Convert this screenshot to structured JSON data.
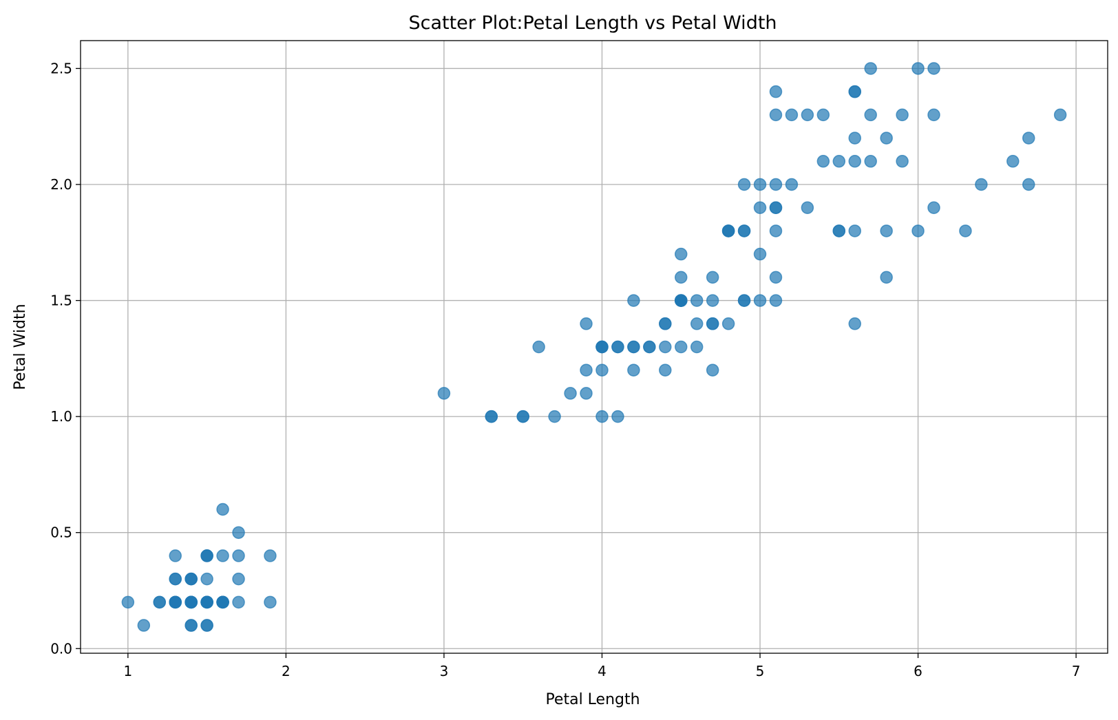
{
  "chart_data": {
    "type": "scatter",
    "title": "Scatter Plot:Petal Length vs Petal Width",
    "xlabel": "Petal Length",
    "ylabel": "Petal Width",
    "xlim": [
      0.7,
      7.2
    ],
    "ylim": [
      -0.02,
      2.62
    ],
    "xticks": [
      1,
      2,
      3,
      4,
      5,
      6,
      7
    ],
    "xtick_labels": [
      "1",
      "2",
      "3",
      "4",
      "5",
      "6",
      "7"
    ],
    "yticks": [
      0.0,
      0.5,
      1.0,
      1.5,
      2.0,
      2.5
    ],
    "ytick_labels": [
      "0.0",
      "0.5",
      "1.0",
      "1.5",
      "2.0",
      "2.5"
    ],
    "grid": true,
    "marker_color": "#1f77b4",
    "marker_alpha": 0.7,
    "points": [
      [
        1.4,
        0.2
      ],
      [
        1.4,
        0.2
      ],
      [
        1.3,
        0.2
      ],
      [
        1.5,
        0.2
      ],
      [
        1.4,
        0.2
      ],
      [
        1.7,
        0.4
      ],
      [
        1.4,
        0.3
      ],
      [
        1.5,
        0.2
      ],
      [
        1.4,
        0.2
      ],
      [
        1.5,
        0.1
      ],
      [
        1.5,
        0.2
      ],
      [
        1.6,
        0.2
      ],
      [
        1.4,
        0.1
      ],
      [
        1.1,
        0.1
      ],
      [
        1.2,
        0.2
      ],
      [
        1.5,
        0.4
      ],
      [
        1.3,
        0.4
      ],
      [
        1.4,
        0.3
      ],
      [
        1.7,
        0.3
      ],
      [
        1.5,
        0.3
      ],
      [
        1.7,
        0.2
      ],
      [
        1.5,
        0.4
      ],
      [
        1.0,
        0.2
      ],
      [
        1.7,
        0.5
      ],
      [
        1.9,
        0.2
      ],
      [
        1.6,
        0.2
      ],
      [
        1.6,
        0.4
      ],
      [
        1.5,
        0.2
      ],
      [
        1.4,
        0.2
      ],
      [
        1.6,
        0.2
      ],
      [
        1.6,
        0.2
      ],
      [
        1.5,
        0.4
      ],
      [
        1.5,
        0.1
      ],
      [
        1.4,
        0.2
      ],
      [
        1.5,
        0.2
      ],
      [
        1.2,
        0.2
      ],
      [
        1.3,
        0.2
      ],
      [
        1.4,
        0.1
      ],
      [
        1.3,
        0.2
      ],
      [
        1.5,
        0.2
      ],
      [
        1.3,
        0.3
      ],
      [
        1.3,
        0.3
      ],
      [
        1.3,
        0.2
      ],
      [
        1.6,
        0.6
      ],
      [
        1.9,
        0.4
      ],
      [
        1.4,
        0.3
      ],
      [
        1.6,
        0.2
      ],
      [
        1.4,
        0.2
      ],
      [
        1.5,
        0.2
      ],
      [
        1.4,
        0.2
      ],
      [
        4.7,
        1.4
      ],
      [
        4.5,
        1.5
      ],
      [
        4.9,
        1.5
      ],
      [
        4.0,
        1.3
      ],
      [
        4.6,
        1.5
      ],
      [
        4.5,
        1.3
      ],
      [
        4.7,
        1.6
      ],
      [
        3.3,
        1.0
      ],
      [
        4.6,
        1.3
      ],
      [
        3.9,
        1.4
      ],
      [
        3.5,
        1.0
      ],
      [
        4.2,
        1.5
      ],
      [
        4.0,
        1.0
      ],
      [
        4.7,
        1.4
      ],
      [
        3.6,
        1.3
      ],
      [
        4.4,
        1.4
      ],
      [
        4.5,
        1.5
      ],
      [
        4.1,
        1.0
      ],
      [
        4.5,
        1.5
      ],
      [
        3.9,
        1.1
      ],
      [
        4.8,
        1.8
      ],
      [
        4.0,
        1.3
      ],
      [
        4.9,
        1.5
      ],
      [
        4.7,
        1.2
      ],
      [
        4.3,
        1.3
      ],
      [
        4.4,
        1.4
      ],
      [
        4.8,
        1.4
      ],
      [
        5.0,
        1.7
      ],
      [
        4.5,
        1.5
      ],
      [
        3.5,
        1.0
      ],
      [
        3.8,
        1.1
      ],
      [
        3.7,
        1.0
      ],
      [
        3.9,
        1.2
      ],
      [
        5.1,
        1.6
      ],
      [
        4.5,
        1.5
      ],
      [
        4.5,
        1.6
      ],
      [
        4.7,
        1.5
      ],
      [
        4.4,
        1.3
      ],
      [
        4.1,
        1.3
      ],
      [
        4.0,
        1.3
      ],
      [
        4.4,
        1.2
      ],
      [
        4.6,
        1.4
      ],
      [
        4.0,
        1.2
      ],
      [
        3.3,
        1.0
      ],
      [
        4.2,
        1.3
      ],
      [
        4.2,
        1.2
      ],
      [
        4.2,
        1.3
      ],
      [
        4.3,
        1.3
      ],
      [
        3.0,
        1.1
      ],
      [
        4.1,
        1.3
      ],
      [
        6.0,
        2.5
      ],
      [
        5.1,
        1.9
      ],
      [
        5.9,
        2.1
      ],
      [
        5.6,
        1.8
      ],
      [
        5.8,
        2.2
      ],
      [
        6.6,
        2.1
      ],
      [
        4.5,
        1.7
      ],
      [
        6.3,
        1.8
      ],
      [
        5.8,
        1.8
      ],
      [
        6.1,
        2.5
      ],
      [
        5.1,
        2.0
      ],
      [
        5.3,
        1.9
      ],
      [
        5.5,
        2.1
      ],
      [
        5.0,
        2.0
      ],
      [
        5.1,
        2.4
      ],
      [
        5.3,
        2.3
      ],
      [
        5.5,
        1.8
      ],
      [
        6.7,
        2.2
      ],
      [
        6.9,
        2.3
      ],
      [
        5.0,
        1.5
      ],
      [
        5.7,
        2.3
      ],
      [
        4.9,
        2.0
      ],
      [
        6.7,
        2.0
      ],
      [
        4.9,
        1.8
      ],
      [
        5.7,
        2.1
      ],
      [
        6.0,
        1.8
      ],
      [
        4.8,
        1.8
      ],
      [
        4.9,
        1.8
      ],
      [
        5.6,
        2.1
      ],
      [
        5.8,
        1.6
      ],
      [
        6.1,
        1.9
      ],
      [
        6.4,
        2.0
      ],
      [
        5.6,
        2.2
      ],
      [
        5.1,
        1.5
      ],
      [
        5.6,
        1.4
      ],
      [
        6.1,
        2.3
      ],
      [
        5.6,
        2.4
      ],
      [
        5.5,
        1.8
      ],
      [
        4.8,
        1.8
      ],
      [
        5.4,
        2.1
      ],
      [
        5.6,
        2.4
      ],
      [
        5.1,
        2.3
      ],
      [
        5.1,
        1.9
      ],
      [
        5.9,
        2.3
      ],
      [
        5.7,
        2.5
      ],
      [
        5.2,
        2.3
      ],
      [
        5.0,
        1.9
      ],
      [
        5.2,
        2.0
      ],
      [
        5.4,
        2.3
      ],
      [
        5.1,
        1.8
      ]
    ]
  }
}
